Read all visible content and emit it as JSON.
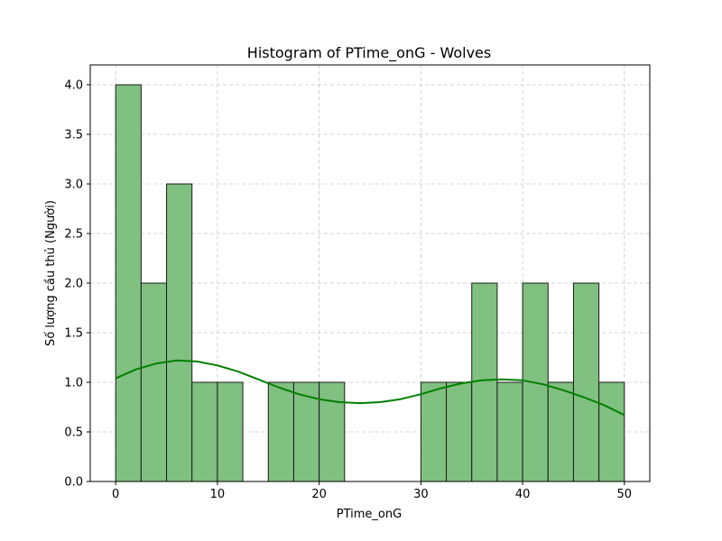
{
  "chart_data": {
    "type": "bar",
    "title": "Histogram of PTime_onG - Wolves",
    "xlabel": "PTime_onG",
    "ylabel": "Số lượng cầu thủ (Người)",
    "xlim": [
      -2.5,
      52.5
    ],
    "ylim": [
      0,
      4.2
    ],
    "xticks": [
      0,
      10,
      20,
      30,
      40,
      50
    ],
    "yticks": [
      0.0,
      0.5,
      1.0,
      1.5,
      2.0,
      2.5,
      3.0,
      3.5,
      4.0
    ],
    "ytick_labels": [
      "0.0",
      "0.5",
      "1.0",
      "1.5",
      "2.0",
      "2.5",
      "3.0",
      "3.5",
      "4.0"
    ],
    "grid": true,
    "bin_edges": [
      0,
      2.5,
      5,
      7.5,
      10,
      12.5,
      15,
      17.5,
      20,
      22.5,
      25,
      27.5,
      30,
      32.5,
      35,
      37.5,
      40,
      42.5,
      45,
      47.5,
      50
    ],
    "counts": [
      4,
      2,
      3,
      1,
      1,
      0,
      1,
      1,
      1,
      0,
      0,
      0,
      1,
      1,
      2,
      1,
      2,
      1,
      2,
      1
    ],
    "bar_color": "#80c080",
    "bar_edge_color": "#1a1a1a",
    "kde": {
      "color": "#008000",
      "x": [
        0,
        2,
        4,
        6,
        8,
        10,
        12,
        14,
        16,
        18,
        20,
        22,
        24,
        26,
        28,
        30,
        32,
        34,
        36,
        38,
        40,
        42,
        44,
        46,
        48,
        50
      ],
      "y": [
        1.04,
        1.13,
        1.19,
        1.22,
        1.21,
        1.17,
        1.11,
        1.03,
        0.95,
        0.88,
        0.83,
        0.8,
        0.79,
        0.8,
        0.83,
        0.88,
        0.94,
        0.99,
        1.02,
        1.03,
        1.02,
        0.98,
        0.92,
        0.85,
        0.77,
        0.67
      ]
    }
  }
}
